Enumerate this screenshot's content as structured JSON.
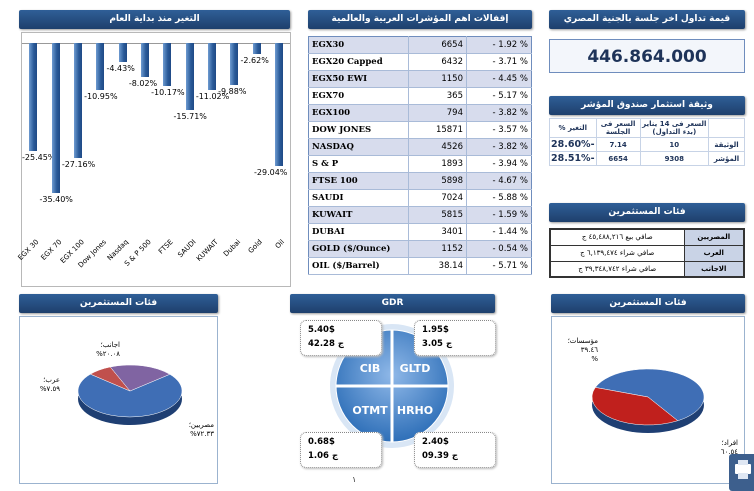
{
  "chart": {
    "title": "التغير منذ بداية العام",
    "bar_color": "#2a5a98"
  },
  "chart_data": {
    "type": "bar",
    "title": "التغير منذ بداية العام",
    "categories": [
      "EGX 30",
      "EGX 70",
      "EGX 100",
      "Dow Jones",
      "Nasdaq",
      "S & P 500",
      "FTSE",
      "SAUDI",
      "KUWAIT",
      "Dubai",
      "Gold",
      "Oil"
    ],
    "values": [
      -25.45,
      -35.4,
      -27.16,
      -10.95,
      -4.43,
      -8.02,
      -10.17,
      -15.71,
      -11.02,
      -9.88,
      -2.62,
      -29.04
    ],
    "labels": [
      "-25.45%",
      "-35.40%",
      "-27.16%",
      "-10.95%",
      "-4.43%",
      "-8.02%",
      "-10.17%",
      "-15.71%",
      "-11.02%",
      "-9.88%",
      "-2.62%",
      "-29.04%"
    ],
    "ylim": [
      -40,
      0
    ],
    "xlabel": "",
    "ylabel": ""
  },
  "indices": {
    "title": "إقفالات اهم المؤشرات العربية والعالمية",
    "rows": [
      {
        "name": "EGX30",
        "value": "6654",
        "change": "- 1.92 %"
      },
      {
        "name": "EGX20 Capped",
        "value": "6432",
        "change": "- 3.71 %"
      },
      {
        "name": "EGX50 EWI",
        "value": "1150",
        "change": "- 4.45 %"
      },
      {
        "name": "EGX70",
        "value": "365",
        "change": "- 5.17 %"
      },
      {
        "name": "EGX100",
        "value": "794",
        "change": "- 3.82 %"
      },
      {
        "name": "DOW JONES",
        "value": "15871",
        "change": "- 3.57 %"
      },
      {
        "name": "NASDAQ",
        "value": "4526",
        "change": "- 3.82 %"
      },
      {
        "name": "S & P",
        "value": "1893",
        "change": "- 3.94 %"
      },
      {
        "name": "FTSE 100",
        "value": "5898",
        "change": "- 4.67 %"
      },
      {
        "name": "SAUDI",
        "value": "7024",
        "change": "- 5.88 %"
      },
      {
        "name": "KUWAIT",
        "value": "5815",
        "change": "- 1.59 %"
      },
      {
        "name": "DUBAI",
        "value": "3401",
        "change": "- 1.44 %"
      },
      {
        "name": "GOLD ($/Ounce)",
        "value": "1152",
        "change": "- 0.54 %"
      },
      {
        "name": "OIL ($/Barrel)",
        "value": "38.14",
        "change": "- 5.71 %"
      }
    ]
  },
  "session": {
    "title": "قيمة تداول اخر جلسة بالجنية المصري",
    "value": "446.864.000"
  },
  "fund": {
    "title": "وثيقة استثمار صندوق المؤشر",
    "col_price_jan": "السعر فى 14 يناير (بدء التداول)",
    "col_price_session": "السعر فى الجلسة",
    "col_change": "التغير %",
    "rows": [
      {
        "label": "الوثيقة",
        "price_jan": "10",
        "price_session": "7.14",
        "change": "-28.60%"
      },
      {
        "label": "المؤشر",
        "price_jan": "9308",
        "price_session": "6654",
        "change": "-28.51%"
      }
    ]
  },
  "investors_table": {
    "title": "فئات المستثمرين",
    "rows": [
      {
        "category": "المصريين",
        "text": "صافي بيع ٤٥,٤٨٨,٢١٦ ج"
      },
      {
        "category": "العرب",
        "text": "صافي شراء ٦,١٣٩,٤٧٤ ج"
      },
      {
        "category": "الاجانب",
        "text": "صافي شراء ٣٩,٣٤٨,٧٤٢ ج"
      }
    ]
  },
  "pie_left": {
    "title": "فئات المستثمرين",
    "label_foreign_name": "اجانب؛",
    "label_foreign_value": "٢٠.٠٨%",
    "label_arab_name": "عرب؛",
    "label_arab_value": "٧.٥٩%",
    "label_egypt_name": "مصريين؛",
    "label_egypt_value": "٧٢.٣٣%",
    "slices": [
      {
        "name": "مصريين",
        "value": 72.33,
        "color": "#3f6eb5"
      },
      {
        "name": "عرب",
        "value": 7.59,
        "color": "#c0504d"
      },
      {
        "name": "اجانب",
        "value": 20.08,
        "color": "#8064a2"
      }
    ]
  },
  "gdr": {
    "title": "GDR",
    "segments": [
      "CIB",
      "GLTD",
      "OTMT",
      "HRHO"
    ],
    "boxes": [
      {
        "usd": "5.40$",
        "egp": "42.28 ج"
      },
      {
        "usd": "1.95$",
        "egp": "3.05 ج"
      },
      {
        "usd": "0.68$",
        "egp": "1.06 ج"
      },
      {
        "usd": "2.40$",
        "egp": "09.39 ج"
      }
    ]
  },
  "pie_right": {
    "title": "فئات المستثمرين",
    "label_inst_name": "مؤسسات؛",
    "label_inst_value": "٣٩.٤٦",
    "label_inst_pct": "%",
    "label_ind_name": "افراد؛",
    "label_ind_value": "٦٠.٥٤",
    "label_ind_pct": "%",
    "slices": [
      {
        "name": "افراد",
        "value": 60.54,
        "color": "#3f6eb5"
      },
      {
        "name": "مؤسسات",
        "value": 39.46,
        "color": "#c0201d"
      }
    ]
  },
  "page_number": "١"
}
